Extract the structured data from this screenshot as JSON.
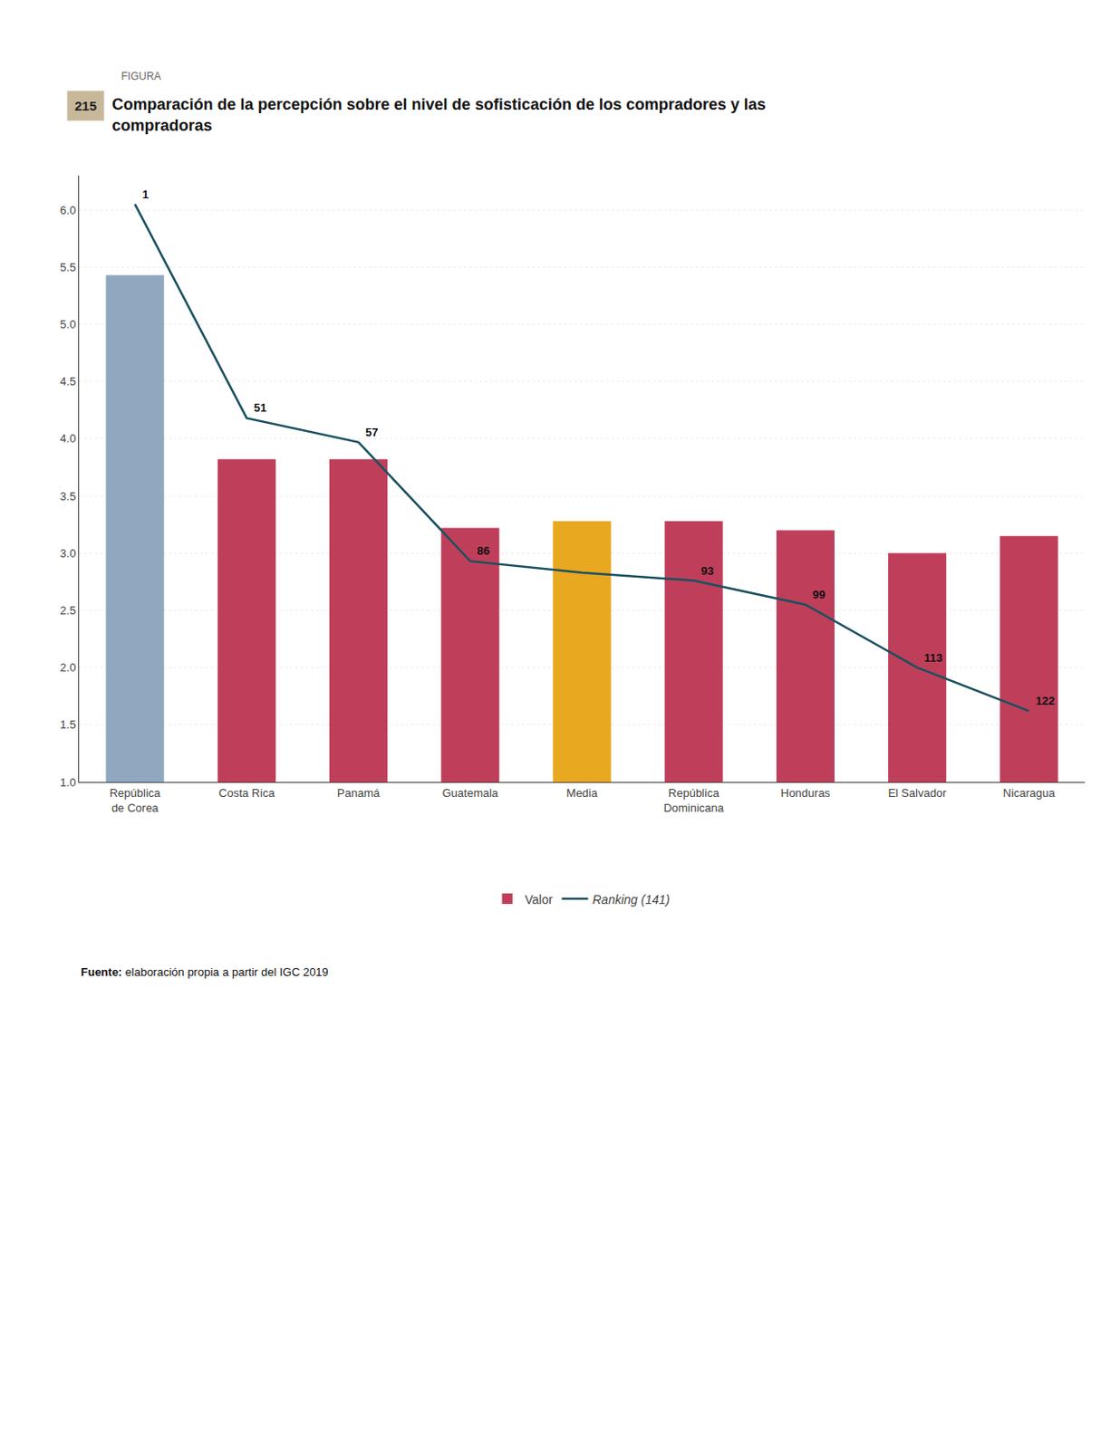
{
  "chart_data": {
    "type": "bar",
    "title": "Comparación de la percepción sobre el nivel de sofisticación de los compradores y las\ncompradoras",
    "categories": [
      "República\nde Corea",
      "Costa Rica",
      "Panamá",
      "Guatemala",
      "Media",
      "República\nDominicana",
      "Honduras",
      "El Salvador",
      "Nicaragua"
    ],
    "series": [
      {
        "name": "Valor",
        "type": "bar",
        "colors": [
          "#8fa8c0",
          "#bf3f5a",
          "#bf3f5a",
          "#bf3f5a",
          "#e8a820",
          "#bf3f5a",
          "#bf3f5a",
          "#bf3f5a",
          "#bf3f5a"
        ],
        "values": [
          5.43,
          3.82,
          3.82,
          3.22,
          3.28,
          3.28,
          3.2,
          3.0,
          3.15
        ]
      },
      {
        "name": "Ranking (141)",
        "type": "line",
        "color": "#1a5060",
        "values": [
          6.05,
          4.18,
          3.97,
          2.93,
          2.83,
          2.76,
          2.55,
          2.0,
          1.62
        ],
        "rankings": [
          1,
          51,
          57,
          86,
          null,
          93,
          99,
          113,
          122
        ]
      }
    ],
    "ylim": [
      1.0,
      6.3
    ],
    "yticks": [
      {
        "value": 1.0,
        "label": "1.0"
      },
      {
        "value": 1.5,
        "label": "1.5"
      },
      {
        "value": 2.0,
        "label": "2.0"
      },
      {
        "value": 2.5,
        "label": "2.5"
      },
      {
        "value": 3.0,
        "label": "3.0"
      },
      {
        "value": 3.5,
        "label": "3.5"
      },
      {
        "value": 4.0,
        "label": "4.0"
      },
      {
        "value": 4.5,
        "label": "4.5"
      },
      {
        "value": 5.0,
        "label": "5.0"
      },
      {
        "value": 5.5,
        "label": "5.5"
      },
      {
        "value": 6.0,
        "label": "6.0"
      }
    ],
    "grid": true,
    "legend": "bottom",
    "annotations": [
      {
        "text": "FIGURA"
      },
      {
        "text": "215",
        "color": "#c8b89a"
      },
      {
        "text": "Fuente: elaboración propia a partir del IGC 2019"
      }
    ]
  }
}
